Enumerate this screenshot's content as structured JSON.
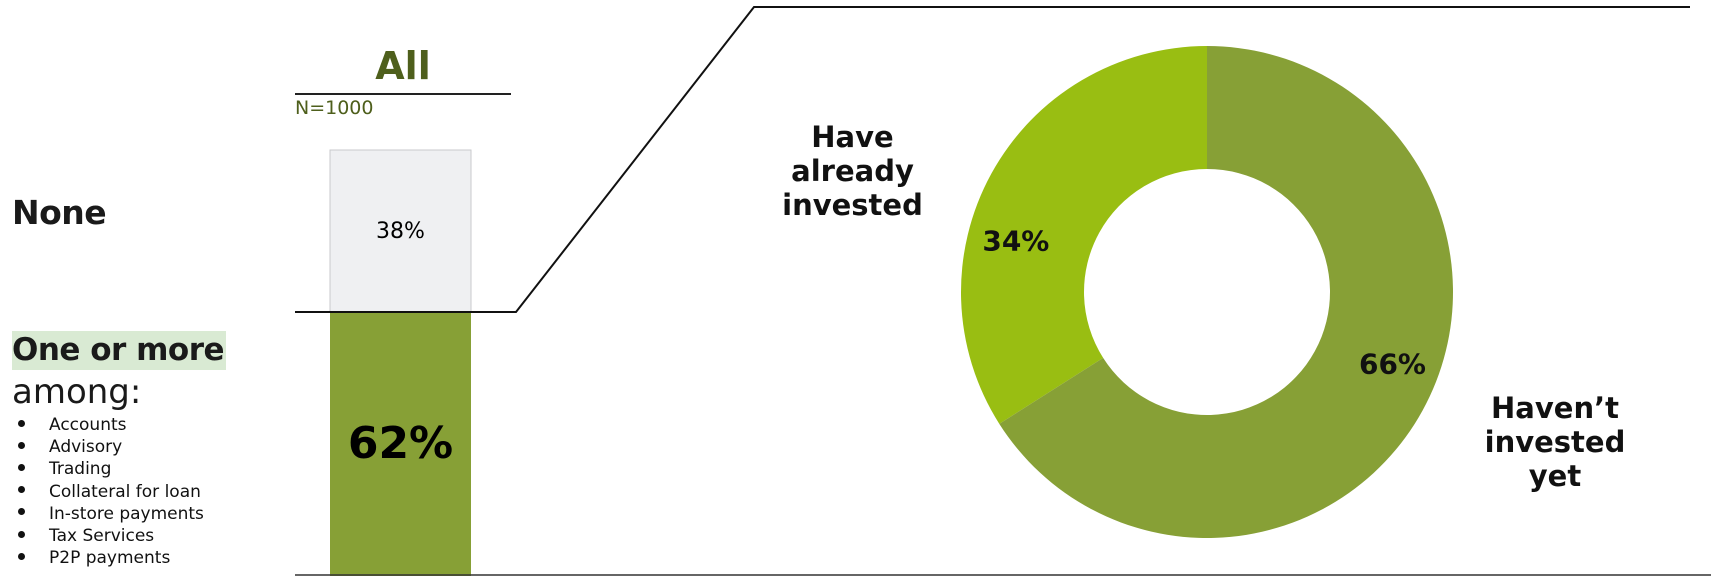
{
  "rows": {
    "none_label": "None",
    "more_label": "One or more",
    "among_label": "among:",
    "items": [
      "Accounts",
      "Advisory",
      "Trading",
      "Collateral for loan",
      "In-store payments",
      "Tax Services",
      "P2P payments"
    ]
  },
  "colors": {
    "bar_none": "#eff0f2",
    "bar_more": "#87a036",
    "donut_invested": "#99be12",
    "donut_not_yet": "#87a036",
    "title": "#4e5f1c",
    "row_highlight": "#d9ead3"
  },
  "chart_data": [
    {
      "type": "bar",
      "title": "All",
      "subtitle": "N=1000",
      "stacked": true,
      "categories": [
        "All"
      ],
      "series": [
        {
          "name": "None",
          "values": [
            38
          ],
          "label": "38%"
        },
        {
          "name": "One or more",
          "values": [
            62
          ],
          "label": "62%"
        }
      ],
      "ylim": [
        0,
        100
      ]
    },
    {
      "type": "pie",
      "donut": true,
      "slices": [
        {
          "label": "Have already invested",
          "value": 34,
          "display": "34%"
        },
        {
          "label": "Haven’t invested yet",
          "value": 66,
          "display": "66%"
        }
      ]
    }
  ]
}
